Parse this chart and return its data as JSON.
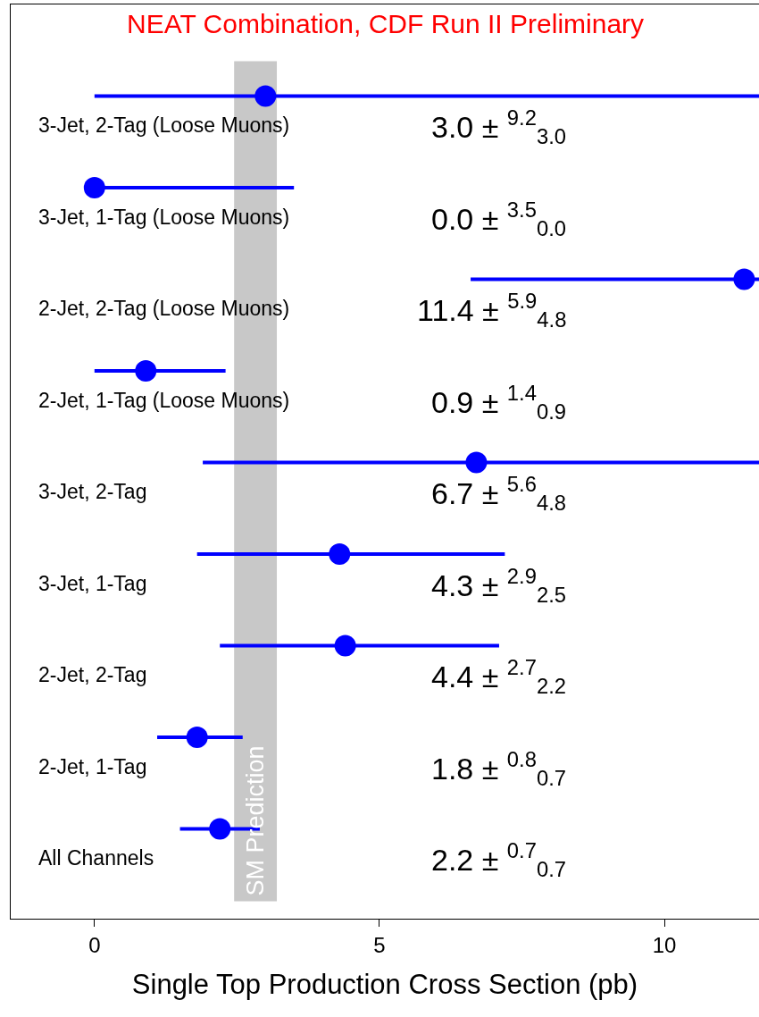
{
  "chart_data": {
    "type": "scatter",
    "orientation": "horizontal",
    "title": "NEAT Combination, CDF Run II Preliminary",
    "xlabel": "Single Top Production Cross Section (pb)",
    "categories": [
      "3-Jet, 2-Tag (Loose Muons)",
      "3-Jet, 1-Tag (Loose Muons)",
      "2-Jet, 2-Tag (Loose Muons)",
      "2-Jet, 1-Tag (Loose Muons)",
      "3-Jet, 2-Tag",
      "3-Jet, 1-Tag",
      "2-Jet, 2-Tag",
      "2-Jet, 1-Tag",
      "All Channels"
    ],
    "values": [
      3.0,
      0.0,
      11.4,
      0.9,
      6.7,
      4.3,
      4.4,
      1.8,
      2.2
    ],
    "errors": [
      [
        0.0,
        12.2
      ],
      [
        0.0,
        3.5
      ],
      [
        6.6,
        17.3
      ],
      [
        0.0,
        2.3
      ],
      [
        1.9,
        12.3
      ],
      [
        1.8,
        7.2
      ],
      [
        2.2,
        7.1
      ],
      [
        1.1,
        2.6
      ],
      [
        1.5,
        2.9
      ]
    ],
    "annotations": [
      "3.0 ± $^{9.2}$$_{3.0}$",
      "0.0 ± $^{3.5}$$_{0.0}$",
      "11.4 ± $^{5.9}$$_{4.8}$",
      "0.9 ± $^{1.4}$$_{0.9}$",
      "6.7 ± $^{5.6}$$_{4.8}$",
      "4.3 ± $^{2.9}$$_{2.5}$",
      "4.4 ± $^{2.7}$$_{2.2}$",
      "1.8 ± $^{0.8}$$_{0.7}$",
      "2.2 ± $^{0.7}$$_{0.7}$"
    ],
    "color": "#0000ff",
    "marker": "circle",
    "bands": [
      {
        "axis": "x",
        "from": 2.45,
        "to": 3.2,
        "label": "SM Prediction",
        "color": "#c8c8c8"
      }
    ],
    "xlim": [
      -1.47,
      11.66
    ],
    "xticks": [
      0,
      5,
      10
    ],
    "grid": false
  }
}
